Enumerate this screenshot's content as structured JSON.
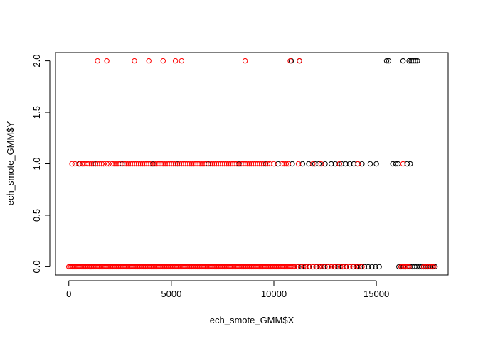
{
  "chart_data": {
    "type": "scatter",
    "title": "",
    "xlabel": "ech_smote_GMM$X",
    "ylabel": "ech_smote_GMM$Y",
    "xlim": [
      -650,
      18500
    ],
    "ylim": [
      -0.08,
      2.08
    ],
    "x_ticks": [
      0,
      5000,
      10000,
      15000
    ],
    "x_tick_labels": [
      "0",
      "5000",
      "10000",
      "15000"
    ],
    "y_ticks": [
      0.0,
      0.5,
      1.0,
      1.5,
      2.0
    ],
    "y_tick_labels": [
      "0.0",
      "0.5",
      "1.0",
      "1.5",
      "2.0"
    ],
    "grid": false,
    "series": [
      {
        "color": "#000000",
        "y0_ranges": [
          [
            11000,
            15200,
            180
          ],
          [
            16100,
            17950,
            110
          ]
        ],
        "y1_points": [
          500,
          1300,
          2600,
          4100,
          5300,
          6800,
          8300,
          9600,
          10200,
          10900,
          11400,
          11700,
          12000,
          12200,
          12500,
          12800,
          13000,
          13200,
          13300,
          13500,
          13700,
          13900,
          14100,
          14300,
          14700,
          15000,
          15800,
          15950,
          16050,
          16500,
          16650
        ],
        "y2_points": [
          10850,
          11250,
          15500,
          15600,
          16300,
          16600,
          16700,
          16800,
          16900,
          17000
        ]
      },
      {
        "color": "#ff0000",
        "y0_ranges": [
          [
            0,
            11000,
            55
          ],
          [
            11000,
            14400,
            150
          ],
          [
            16200,
            16600,
            80
          ],
          [
            17300,
            17800,
            100
          ]
        ],
        "y1_points": [
          150,
          300,
          550,
          650,
          700,
          780,
          900,
          1000,
          1100,
          1200,
          1400,
          1500,
          1600,
          1700,
          1850,
          1950,
          2100,
          2200,
          2300,
          2400,
          2500,
          2700,
          2800,
          2900,
          3000,
          3100,
          3200,
          3300,
          3400,
          3500,
          3600,
          3700,
          3800,
          3900,
          4000,
          4200,
          4300,
          4400,
          4500,
          4600,
          4700,
          4800,
          4900,
          5000,
          5100,
          5200,
          5400,
          5500,
          5600,
          5700,
          5800,
          5900,
          6000,
          6100,
          6200,
          6300,
          6400,
          6500,
          6600,
          6700,
          6900,
          7000,
          7100,
          7200,
          7300,
          7400,
          7500,
          7600,
          7700,
          7800,
          7900,
          8000,
          8100,
          8200,
          8400,
          8500,
          8600,
          8700,
          8800,
          8900,
          9000,
          9100,
          9200,
          9300,
          9400,
          9500,
          9700,
          9800,
          10000,
          10400,
          10500,
          10600,
          10700,
          11200,
          11900,
          12300,
          13200,
          14100,
          16300
        ],
        "y2_points": [
          1400,
          1850,
          3200,
          3900,
          4600,
          5200,
          5500,
          8600,
          10800,
          11250
        ]
      }
    ]
  }
}
